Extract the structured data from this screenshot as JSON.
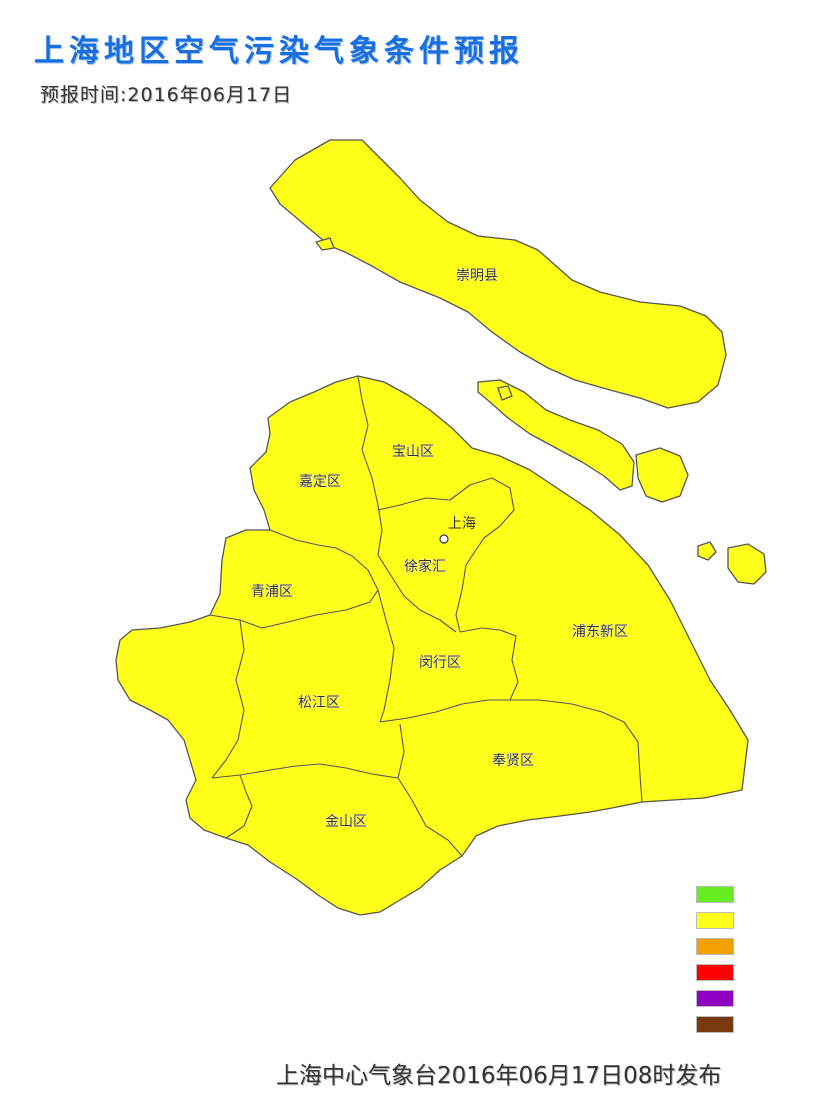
{
  "title": "上海地区空气污染气象条件预报",
  "forecast_time": "预报时间:2016年06月17日",
  "districts": {
    "chongming": "崇明县",
    "baoshan": "宝山区",
    "jiading": "嘉定区",
    "qingpu": "青浦区",
    "songjiang": "松江区",
    "minhang": "闵行区",
    "xuhui": "徐家汇",
    "pudong": "浦东新区",
    "fengxian": "奉贤区",
    "jinshan": "金山区"
  },
  "city_marker": "上海",
  "legend": {
    "levels": [
      {
        "color": "#66ee22"
      },
      {
        "color": "#ffff19"
      },
      {
        "color": "#f0a000"
      },
      {
        "color": "#ff0000"
      },
      {
        "color": "#9000c0"
      },
      {
        "color": "#7a3a10"
      }
    ]
  },
  "footer": "上海中心气象台2016年06月17日08时发布"
}
